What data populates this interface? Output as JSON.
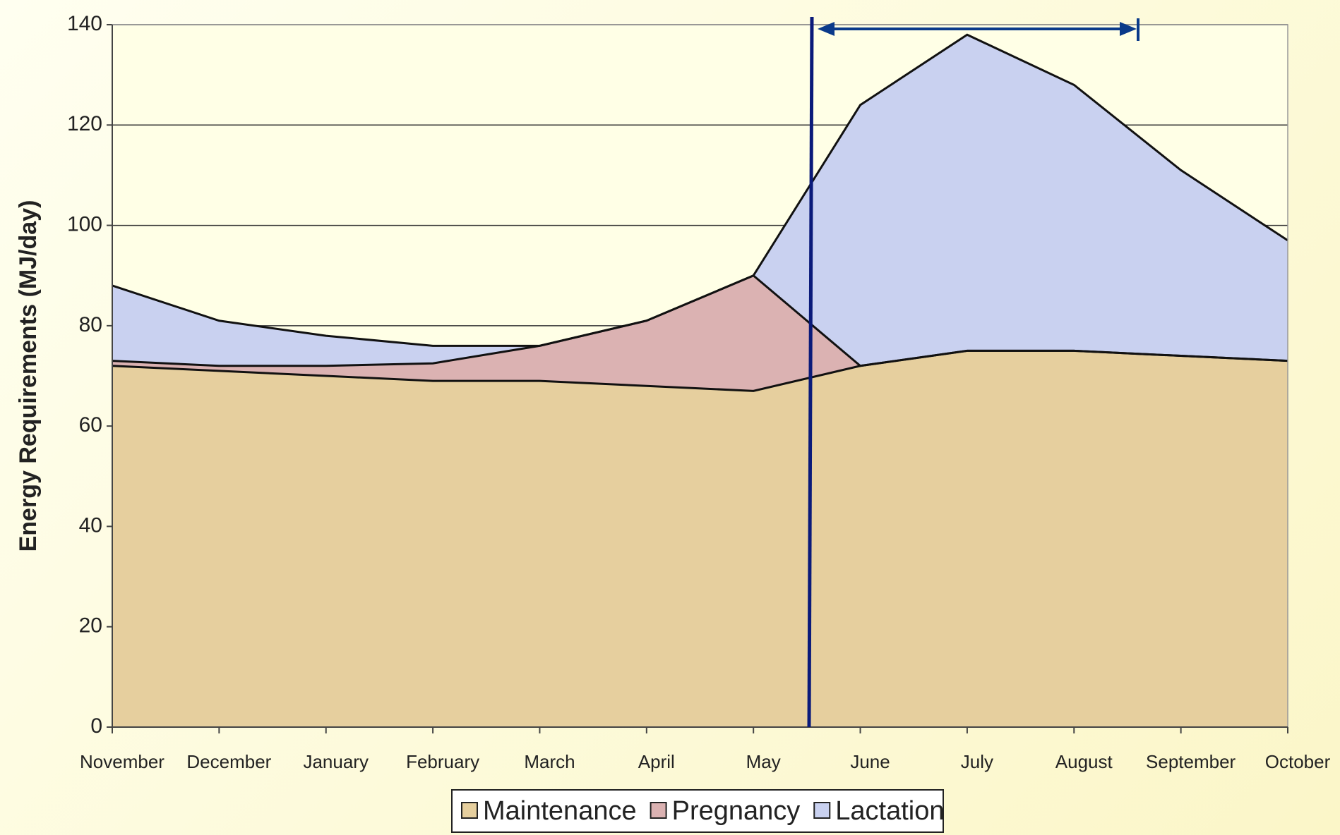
{
  "chart_data": {
    "type": "stacked_area",
    "y_label": "Energy Requirements (MJ/day)",
    "categories": [
      "November",
      "December",
      "January",
      "February",
      "March",
      "April",
      "May",
      "June",
      "July",
      "August",
      "September",
      "October"
    ],
    "series": [
      {
        "name": "Maintenance",
        "color": "#e6cf9e",
        "values": [
          72,
          71,
          70,
          69,
          69,
          68,
          67,
          72,
          75,
          75,
          74,
          73
        ]
      },
      {
        "name": "Pregnancy",
        "color": "#dbb2b2",
        "values": [
          1,
          1,
          2,
          3.5,
          7,
          13,
          23,
          0,
          0,
          0,
          0,
          0
        ]
      },
      {
        "name": "Lactation",
        "color": "#c9d1f0",
        "values": [
          15,
          9,
          6,
          3.5,
          0,
          0,
          0,
          52,
          63,
          53,
          37,
          24
        ]
      }
    ],
    "ylim": [
      0,
      140
    ],
    "yticks": [
      0,
      20,
      40,
      60,
      80,
      100,
      120,
      140
    ],
    "grid": true,
    "legend": "bottom"
  }
}
